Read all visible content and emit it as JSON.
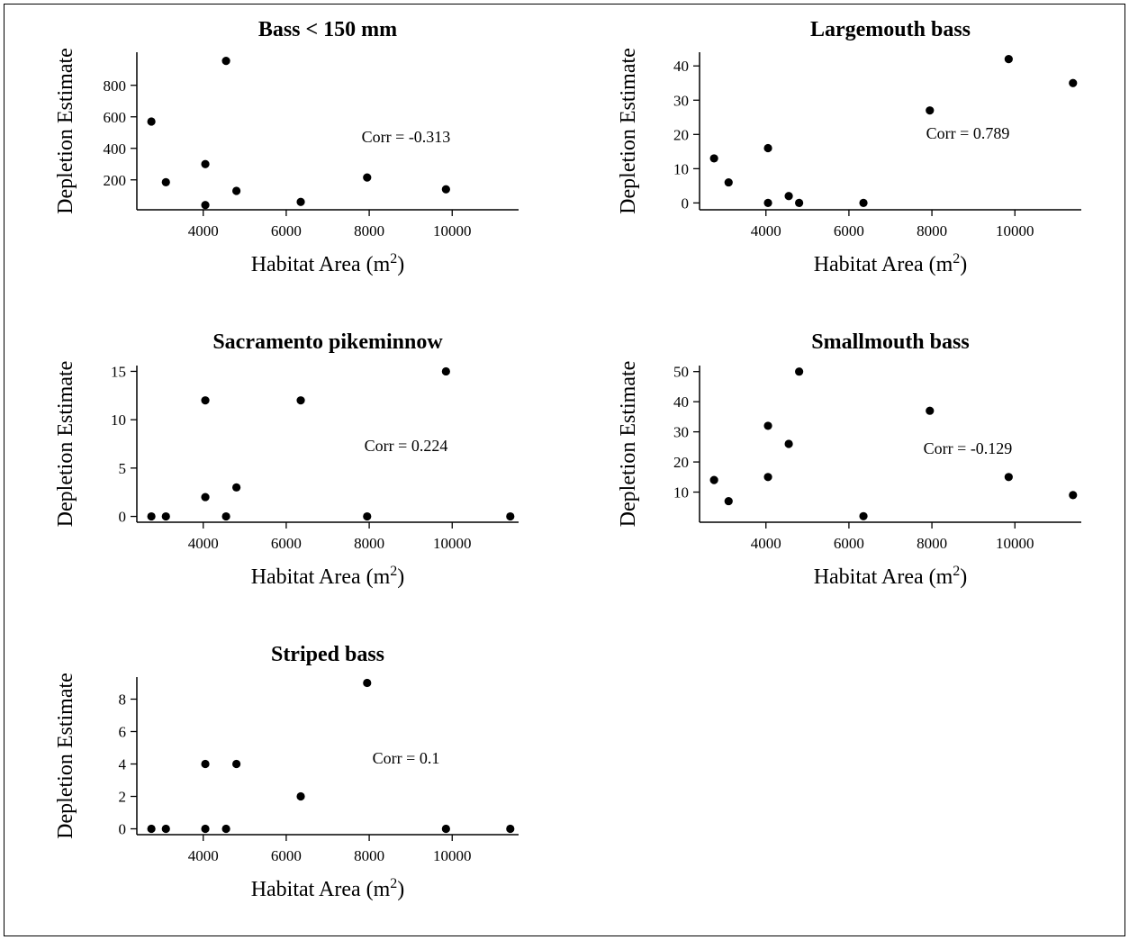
{
  "axis_text": {
    "xlabel_main": "Habitat Area (m",
    "xlabel_sup": "2",
    "xlabel_close": ")",
    "ylabel": "Depletion Estimate"
  },
  "chart_data": [
    {
      "type": "scatter",
      "title": "Bass < 150 mm",
      "annotation": "Corr = -0.313",
      "xlim": [
        2400,
        11600
      ],
      "ylim": [
        10,
        1010
      ],
      "xticks": [
        4000,
        6000,
        8000,
        10000
      ],
      "yticks": [
        200,
        400,
        600,
        800
      ],
      "points": [
        {
          "x": 2750,
          "y": 570
        },
        {
          "x": 3100,
          "y": 185
        },
        {
          "x": 4050,
          "y": 300
        },
        {
          "x": 4050,
          "y": 40
        },
        {
          "x": 4550,
          "y": 955
        },
        {
          "x": 4800,
          "y": 130
        },
        {
          "x": 6350,
          "y": 60
        },
        {
          "x": 7950,
          "y": 215
        },
        {
          "x": 9850,
          "y": 140
        }
      ]
    },
    {
      "type": "scatter",
      "title": "Largemouth bass",
      "annotation": "Corr = 0.789",
      "xlim": [
        2400,
        11600
      ],
      "ylim": [
        -2,
        44
      ],
      "xticks": [
        4000,
        6000,
        8000,
        10000
      ],
      "yticks": [
        0,
        10,
        20,
        30,
        40
      ],
      "points": [
        {
          "x": 2750,
          "y": 13
        },
        {
          "x": 3100,
          "y": 6
        },
        {
          "x": 4050,
          "y": 16
        },
        {
          "x": 4050,
          "y": 0
        },
        {
          "x": 4550,
          "y": 2
        },
        {
          "x": 4800,
          "y": 0
        },
        {
          "x": 6350,
          "y": 0
        },
        {
          "x": 7950,
          "y": 27
        },
        {
          "x": 9850,
          "y": 42
        },
        {
          "x": 11400,
          "y": 35
        }
      ]
    },
    {
      "type": "scatter",
      "title": "Sacramento pikeminnow",
      "annotation": "Corr = 0.224",
      "xlim": [
        2400,
        11600
      ],
      "ylim": [
        -0.6,
        15.6
      ],
      "xticks": [
        4000,
        6000,
        8000,
        10000
      ],
      "yticks": [
        0,
        5,
        10,
        15
      ],
      "points": [
        {
          "x": 2750,
          "y": 0
        },
        {
          "x": 3100,
          "y": 0
        },
        {
          "x": 4050,
          "y": 12
        },
        {
          "x": 4050,
          "y": 2
        },
        {
          "x": 4550,
          "y": 0
        },
        {
          "x": 4800,
          "y": 3
        },
        {
          "x": 6350,
          "y": 12
        },
        {
          "x": 7950,
          "y": 0
        },
        {
          "x": 9850,
          "y": 15
        },
        {
          "x": 11400,
          "y": 0
        }
      ]
    },
    {
      "type": "scatter",
      "title": "Smallmouth bass",
      "annotation": "Corr = -0.129",
      "xlim": [
        2400,
        11600
      ],
      "ylim": [
        0,
        52
      ],
      "xticks": [
        4000,
        6000,
        8000,
        10000
      ],
      "yticks": [
        10,
        20,
        30,
        40,
        50
      ],
      "points": [
        {
          "x": 2750,
          "y": 14
        },
        {
          "x": 3100,
          "y": 7
        },
        {
          "x": 4050,
          "y": 32
        },
        {
          "x": 4050,
          "y": 15
        },
        {
          "x": 4550,
          "y": 26
        },
        {
          "x": 4800,
          "y": 50
        },
        {
          "x": 6350,
          "y": 2
        },
        {
          "x": 7950,
          "y": 37
        },
        {
          "x": 9850,
          "y": 15
        },
        {
          "x": 11400,
          "y": 9
        }
      ]
    },
    {
      "type": "scatter",
      "title": "Striped bass",
      "annotation": "Corr = 0.1",
      "xlim": [
        2400,
        11600
      ],
      "ylim": [
        -0.36,
        9.36
      ],
      "xticks": [
        4000,
        6000,
        8000,
        10000
      ],
      "yticks": [
        0,
        2,
        4,
        6,
        8
      ],
      "points": [
        {
          "x": 2750,
          "y": 0
        },
        {
          "x": 3100,
          "y": 0
        },
        {
          "x": 4050,
          "y": 4
        },
        {
          "x": 4050,
          "y": 0
        },
        {
          "x": 4550,
          "y": 0
        },
        {
          "x": 4800,
          "y": 4
        },
        {
          "x": 6350,
          "y": 2
        },
        {
          "x": 7950,
          "y": 9
        },
        {
          "x": 9850,
          "y": 0
        },
        {
          "x": 11400,
          "y": 0
        }
      ]
    }
  ]
}
